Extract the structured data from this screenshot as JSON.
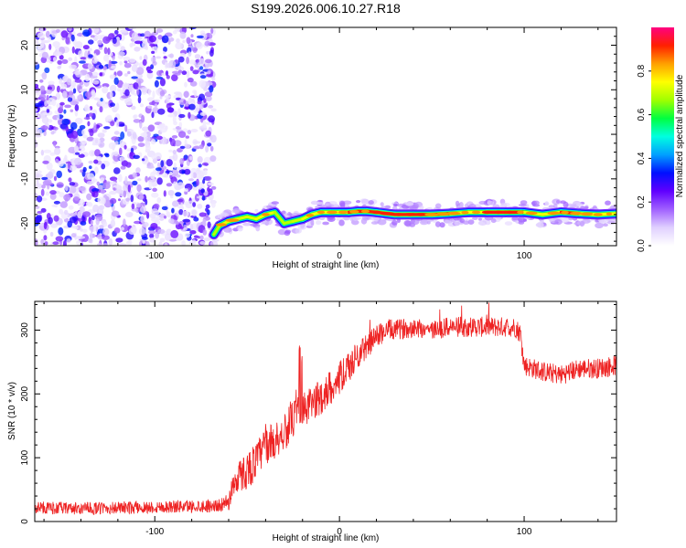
{
  "page": {
    "title": "S199.2026.006.10.27.R18"
  },
  "colors": {
    "snr_line": "#ee2222",
    "frame": "#000000"
  },
  "chart_data": [
    {
      "type": "heatmap",
      "title": "S199.2026.006.10.27.R18",
      "xlabel": "Height of straight line (km)",
      "ylabel": "Frequency (Hz)",
      "xlim": [
        -165,
        150
      ],
      "ylim": [
        -25,
        24
      ],
      "xticks": [
        -100,
        0,
        100
      ],
      "yticks": [
        -20,
        -10,
        0,
        10,
        20
      ],
      "colorbar": {
        "label": "Normalized spectral amplitude",
        "range": [
          0,
          1
        ],
        "ticks": [
          0.0,
          0.2,
          0.4,
          0.6,
          0.8
        ],
        "colormap": [
          "#ffffff",
          "#e0d0ff",
          "#a060ff",
          "#6000ff",
          "#0010ff",
          "#00a0ff",
          "#00ffe0",
          "#00ff40",
          "#a0ff00",
          "#ffff00",
          "#ffa000",
          "#ff2000",
          "#ff0080"
        ]
      },
      "noise_region": {
        "x_from": -165,
        "x_to": -68
      },
      "ridge": {
        "x": [
          -68,
          -65,
          -60,
          -55,
          -50,
          -45,
          -40,
          -35,
          -30,
          -25,
          -20,
          -15,
          -10,
          -5,
          0,
          5,
          10,
          15,
          20,
          30,
          40,
          50,
          60,
          70,
          80,
          90,
          100,
          110,
          120,
          130,
          140,
          150
        ],
        "y": [
          -22.5,
          -20.5,
          -19.5,
          -19,
          -18.5,
          -19,
          -18,
          -17.5,
          -20,
          -19.5,
          -19,
          -18,
          -17.5,
          -17.5,
          -17.5,
          -17.5,
          -17.3,
          -17.3,
          -17.5,
          -18,
          -18,
          -18,
          -17.8,
          -17.5,
          -17.5,
          -17.5,
          -17.5,
          -18,
          -17.5,
          -17.8,
          -18,
          -17.8
        ],
        "amplitude": [
          0.7,
          0.85,
          0.9,
          0.85,
          0.8,
          0.85,
          0.9,
          0.85,
          0.7,
          0.75,
          0.85,
          0.9,
          0.9,
          0.95,
          0.9,
          0.95,
          0.95,
          0.95,
          1.0,
          1.0,
          1.0,
          0.95,
          0.95,
          0.9,
          1.0,
          1.0,
          0.95,
          0.85,
          0.95,
          0.95,
          0.9,
          0.9
        ]
      }
    },
    {
      "type": "line",
      "xlabel": "Height of straight line (km)",
      "ylabel": "SNR (10 * v/v)",
      "xlim": [
        -165,
        150
      ],
      "ylim": [
        0,
        345
      ],
      "xticks": [
        -100,
        0,
        100
      ],
      "yticks": [
        0,
        100,
        200,
        300
      ],
      "series": [
        {
          "x": [
            -165,
            -140,
            -110,
            -80,
            -65,
            -60,
            -58,
            -55,
            -50,
            -45,
            -40,
            -35,
            -30,
            -25,
            -22,
            -20,
            -15,
            -10,
            -5,
            0,
            5,
            10,
            15,
            20,
            25,
            30,
            40,
            50,
            60,
            70,
            80,
            90,
            95,
            98,
            100,
            110,
            120,
            130,
            140,
            150
          ],
          "y": [
            22,
            20,
            22,
            24,
            25,
            30,
            55,
            70,
            80,
            95,
            120,
            125,
            140,
            160,
            170,
            170,
            185,
            195,
            210,
            225,
            240,
            262,
            275,
            290,
            300,
            300,
            305,
            300,
            305,
            305,
            305,
            305,
            305,
            295,
            245,
            235,
            230,
            240,
            240,
            245
          ],
          "noise": [
            10,
            10,
            10,
            10,
            10,
            14,
            20,
            25,
            30,
            30,
            30,
            30,
            30,
            30,
            30,
            30,
            28,
            28,
            28,
            26,
            25,
            22,
            20,
            18,
            18,
            16,
            16,
            16,
            16,
            16,
            16,
            16,
            16,
            16,
            16,
            16,
            16,
            16,
            16,
            16
          ],
          "color": "#ee2222"
        }
      ]
    }
  ]
}
